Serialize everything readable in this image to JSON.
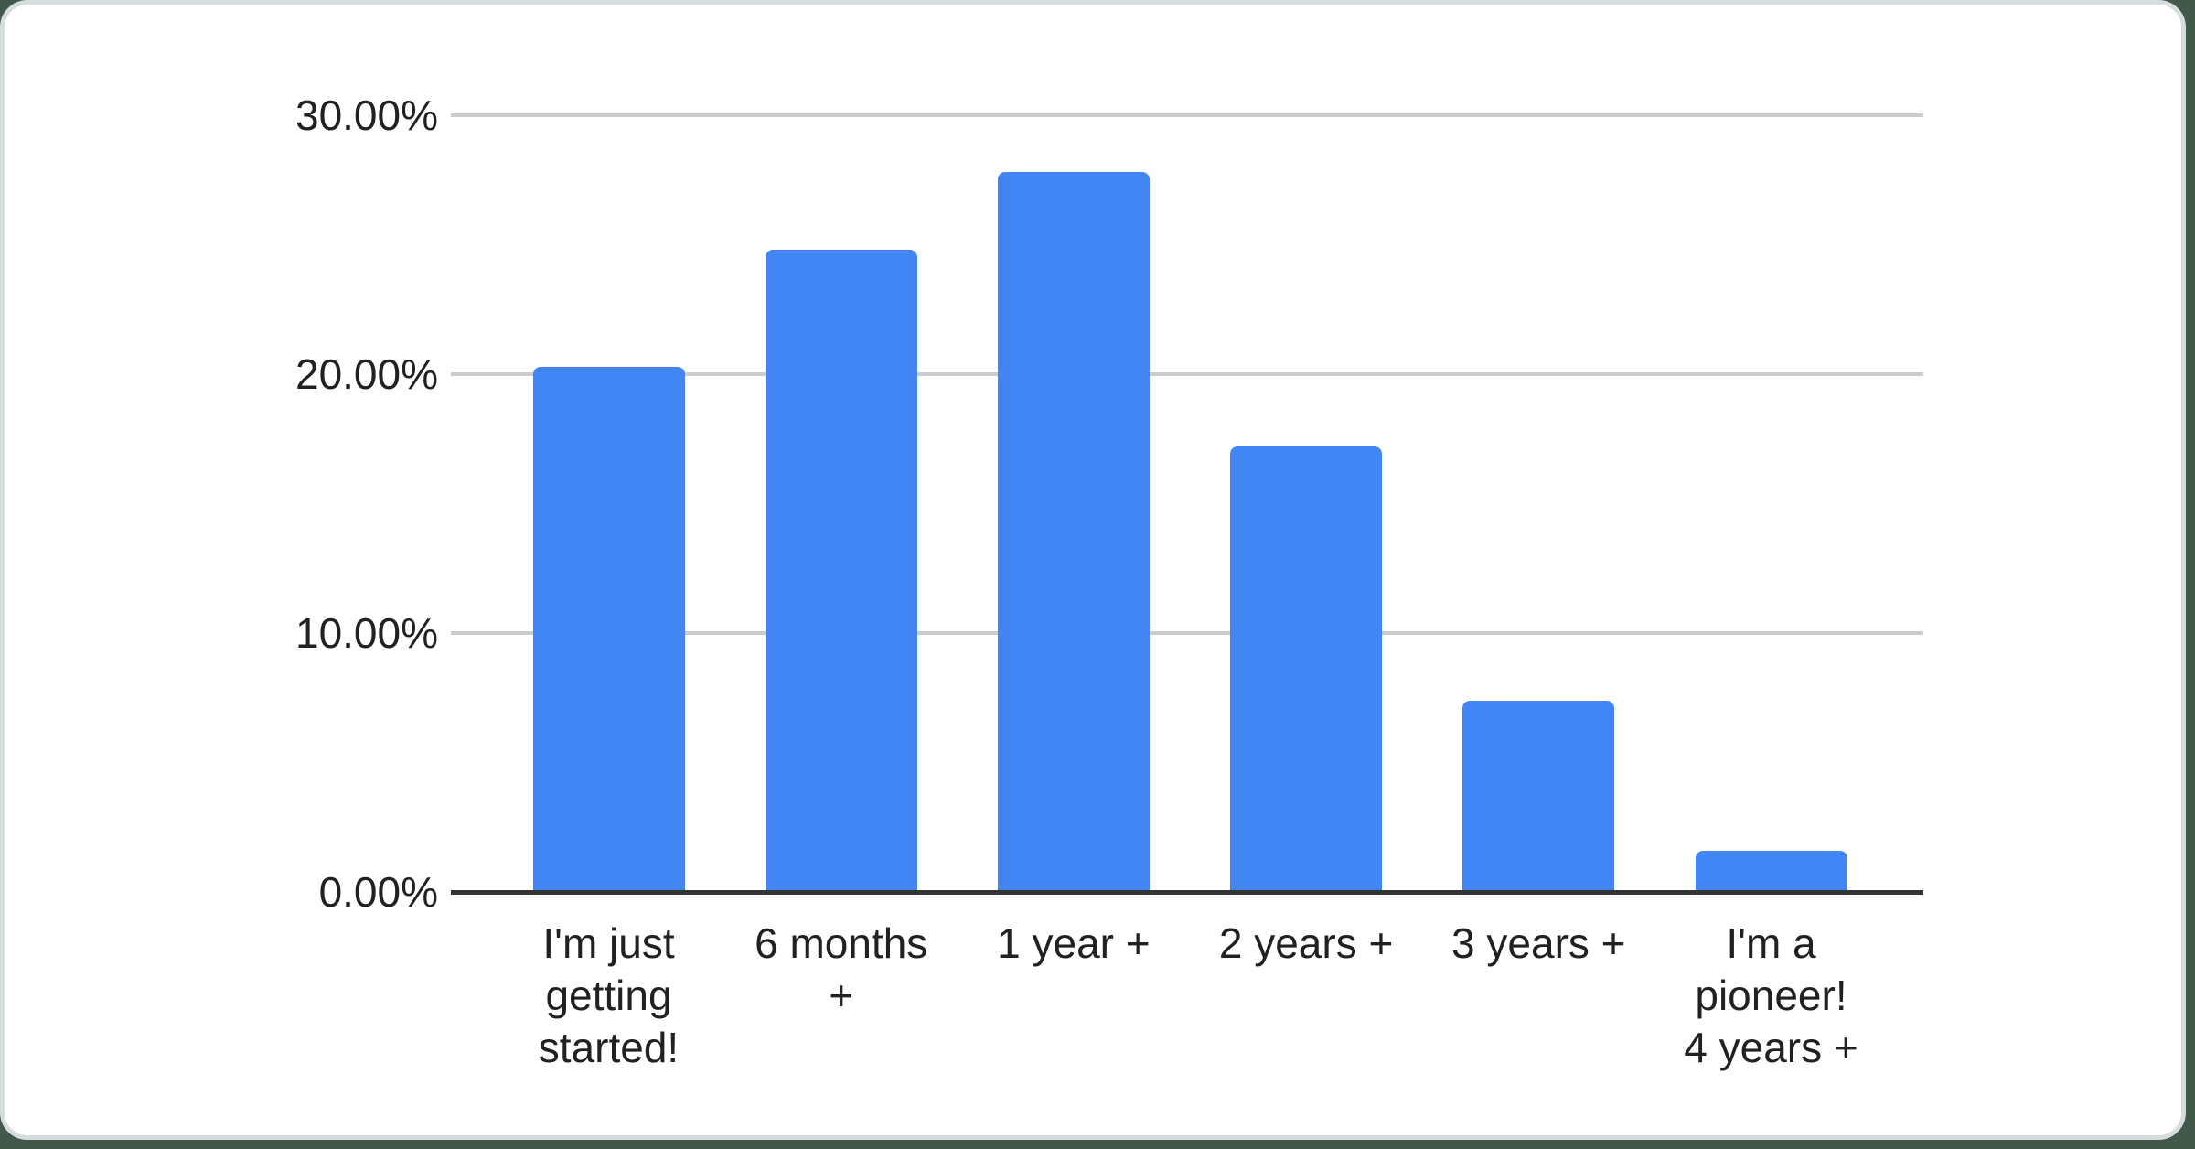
{
  "chart_data": {
    "type": "bar",
    "title": "",
    "xlabel": "",
    "ylabel": "",
    "categories": [
      "I'm just getting started!",
      "6 months +",
      "1 year +",
      "2 years +",
      "3 years +",
      "I'm a pioneer! 4 years +"
    ],
    "values": [
      20.4,
      24.9,
      27.9,
      17.3,
      7.5,
      1.7
    ],
    "value_unit": "%",
    "ylim": [
      0,
      30
    ],
    "ytick_step": 10,
    "ytick_labels": [
      "0.00%",
      "10.00%",
      "20.00%",
      "30.00%"
    ],
    "xtick_display_lines": [
      [
        "I'm just",
        "getting",
        "started!"
      ],
      [
        "6 months",
        "+"
      ],
      [
        "1 year +"
      ],
      [
        "2 years +"
      ],
      [
        "3 years +"
      ],
      [
        "I'm a",
        "pioneer!",
        "4 years +"
      ]
    ],
    "grid": "horizontal-only",
    "legend": "none",
    "series_name": ""
  },
  "colors": {
    "bar": "#4285f4",
    "gridline": "#cccccc",
    "axis_line": "#333333",
    "label_text": "#212121",
    "card_bg": "#ffffff",
    "card_edge": "#d7dcdf",
    "page_bg": "#41584b"
  }
}
